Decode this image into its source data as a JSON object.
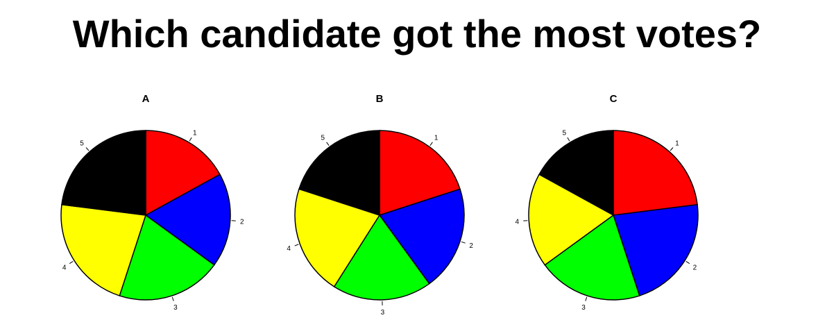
{
  "title": "Which candidate got the most votes?",
  "chart_data": [
    {
      "type": "pie",
      "title": "A",
      "categories": [
        "1",
        "2",
        "3",
        "4",
        "5"
      ],
      "values": [
        17,
        18,
        20,
        22,
        23
      ],
      "colors": [
        "#ff0000",
        "#0000ff",
        "#00ff00",
        "#ffff00",
        "#000000"
      ],
      "clockwise": true,
      "start": "12 o'clock"
    },
    {
      "type": "pie",
      "title": "B",
      "categories": [
        "1",
        "2",
        "3",
        "4",
        "5"
      ],
      "values": [
        20,
        20,
        19,
        21,
        20
      ],
      "colors": [
        "#ff0000",
        "#0000ff",
        "#00ff00",
        "#ffff00",
        "#000000"
      ],
      "clockwise": true,
      "start": "12 o'clock"
    },
    {
      "type": "pie",
      "title": "C",
      "categories": [
        "1",
        "2",
        "3",
        "4",
        "5"
      ],
      "values": [
        23,
        22,
        20,
        18,
        17
      ],
      "colors": [
        "#ff0000",
        "#0000ff",
        "#00ff00",
        "#ffff00",
        "#000000"
      ],
      "clockwise": true,
      "start": "12 o'clock"
    }
  ]
}
